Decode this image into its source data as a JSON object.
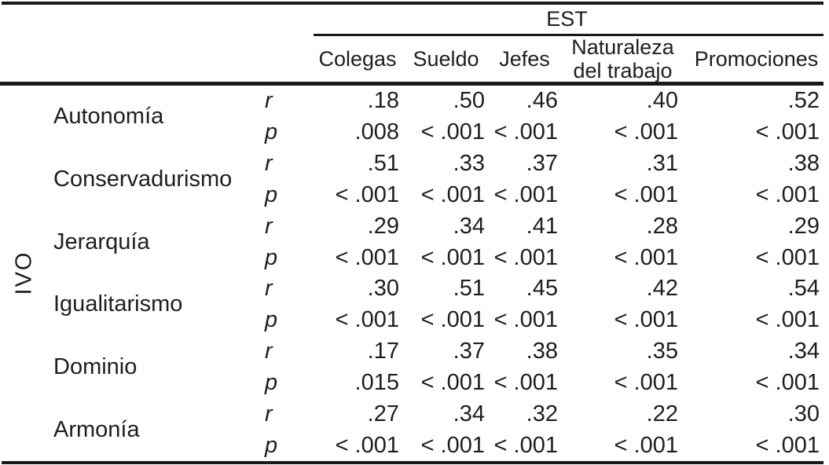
{
  "table": {
    "col_group_header": "EST",
    "row_group_header": "IVO",
    "stat_labels": {
      "r": "r",
      "p": "p"
    },
    "columns": [
      "Colegas",
      "Sueldo",
      "Jefes",
      "Naturaleza del trabajo",
      "Promociones"
    ],
    "rows": [
      {
        "label": "Autonomía",
        "r": [
          ".18",
          ".50",
          ".46",
          ".40",
          ".52"
        ],
        "p": [
          ".008",
          "< .001",
          "< .001",
          "< .001",
          "< .001"
        ]
      },
      {
        "label": "Conservadurismo",
        "r": [
          ".51",
          ".33",
          ".37",
          ".31",
          ".38"
        ],
        "p": [
          "< .001",
          "< .001",
          "< .001",
          "< .001",
          "< .001"
        ]
      },
      {
        "label": "Jerarquía",
        "r": [
          ".29",
          ".34",
          ".41",
          ".28",
          ".29"
        ],
        "p": [
          "< .001",
          "< .001",
          "< .001",
          "< .001",
          "< .001"
        ]
      },
      {
        "label": "Igualitarismo",
        "r": [
          ".30",
          ".51",
          ".45",
          ".42",
          ".54"
        ],
        "p": [
          "< .001",
          "< .001",
          "< .001",
          "< .001",
          "< .001"
        ]
      },
      {
        "label": "Dominio",
        "r": [
          ".17",
          ".37",
          ".38",
          ".35",
          ".34"
        ],
        "p": [
          ".015",
          "< .001",
          "< .001",
          "< .001",
          "< .001"
        ]
      },
      {
        "label": "Armonía",
        "r": [
          ".27",
          ".34",
          ".32",
          ".22",
          ".30"
        ],
        "p": [
          "< .001",
          "< .001",
          "< .001",
          "< .001",
          "< .001"
        ]
      }
    ],
    "colors": {
      "text": "#1e1e1e",
      "rule": "#191919",
      "background": "#ffffff"
    }
  },
  "chart_data": {
    "type": "table",
    "title": "",
    "column_group": "EST",
    "row_group": "IVO",
    "categories": [
      "Colegas",
      "Sueldo",
      "Jefes",
      "Naturaleza del trabajo",
      "Promociones"
    ],
    "series": [
      {
        "name": "Autonomía r",
        "values": [
          0.18,
          0.5,
          0.46,
          0.4,
          0.52
        ]
      },
      {
        "name": "Conservadurismo r",
        "values": [
          0.51,
          0.33,
          0.37,
          0.31,
          0.38
        ]
      },
      {
        "name": "Jerarquía r",
        "values": [
          0.29,
          0.34,
          0.41,
          0.28,
          0.29
        ]
      },
      {
        "name": "Igualitarismo r",
        "values": [
          0.3,
          0.51,
          0.45,
          0.42,
          0.54
        ]
      },
      {
        "name": "Dominio r",
        "values": [
          0.17,
          0.37,
          0.38,
          0.35,
          0.34
        ]
      },
      {
        "name": "Armonía r",
        "values": [
          0.27,
          0.34,
          0.32,
          0.22,
          0.3
        ]
      }
    ]
  }
}
